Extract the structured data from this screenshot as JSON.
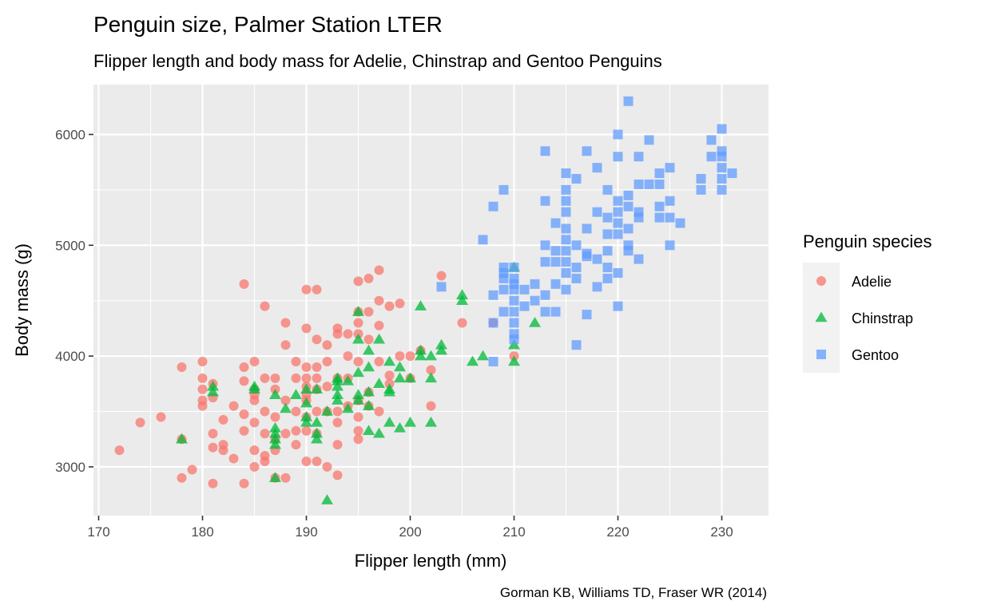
{
  "chart_data": {
    "type": "scatter",
    "title": "Penguin size, Palmer Station LTER",
    "subtitle": "Flipper length and body mass for Adelie, Chinstrap and Gentoo Penguins",
    "xlabel": "Flipper length (mm)",
    "ylabel": "Body mass (g)",
    "caption": "Gorman KB, Williams TD, Fraser WR (2014)",
    "xlim": [
      169.5,
      234.5
    ],
    "ylim": [
      2560,
      6450
    ],
    "x_ticks": [
      "170",
      "180",
      "190",
      "200",
      "210",
      "220",
      "230"
    ],
    "y_ticks": [
      "3000",
      "4000",
      "5000",
      "6000"
    ],
    "grid": true,
    "legend": {
      "title": "Penguin species",
      "position": "right"
    },
    "series": [
      {
        "name": "Adelie",
        "color": "#F8766D",
        "shape": "circle",
        "points": [
          [
            172,
            3150
          ],
          [
            174,
            3400
          ],
          [
            176,
            3450
          ],
          [
            178,
            3900
          ],
          [
            178,
            2900
          ],
          [
            178,
            3250
          ],
          [
            179,
            2975
          ],
          [
            180,
            3950
          ],
          [
            180,
            3800
          ],
          [
            180,
            3700
          ],
          [
            180,
            3600
          ],
          [
            180,
            3550
          ],
          [
            181,
            3750
          ],
          [
            181,
            3625
          ],
          [
            181,
            3300
          ],
          [
            181,
            3175
          ],
          [
            181,
            2850
          ],
          [
            182,
            3425
          ],
          [
            182,
            3200
          ],
          [
            182,
            3150
          ],
          [
            183,
            3550
          ],
          [
            183,
            3075
          ],
          [
            184,
            4650
          ],
          [
            184,
            3900
          ],
          [
            184,
            3775
          ],
          [
            184,
            3475
          ],
          [
            184,
            3325
          ],
          [
            184,
            2850
          ],
          [
            185,
            3950
          ],
          [
            185,
            3700
          ],
          [
            185,
            3650
          ],
          [
            185,
            3600
          ],
          [
            185,
            3400
          ],
          [
            185,
            3150
          ],
          [
            185,
            3000
          ],
          [
            186,
            4450
          ],
          [
            186,
            3800
          ],
          [
            186,
            3500
          ],
          [
            186,
            3300
          ],
          [
            186,
            3100
          ],
          [
            186,
            3050
          ],
          [
            187,
            3800
          ],
          [
            187,
            3700
          ],
          [
            187,
            3450
          ],
          [
            187,
            3250
          ],
          [
            187,
            3150
          ],
          [
            187,
            2900
          ],
          [
            188,
            4300
          ],
          [
            188,
            4100
          ],
          [
            188,
            3600
          ],
          [
            188,
            3300
          ],
          [
            188,
            2900
          ],
          [
            189,
            3950
          ],
          [
            189,
            3800
          ],
          [
            189,
            3500
          ],
          [
            189,
            3325
          ],
          [
            189,
            3200
          ],
          [
            190,
            4600
          ],
          [
            190,
            4250
          ],
          [
            190,
            3900
          ],
          [
            190,
            3800
          ],
          [
            190,
            3725
          ],
          [
            190,
            3650
          ],
          [
            190,
            3600
          ],
          [
            190,
            3450
          ],
          [
            190,
            3325
          ],
          [
            190,
            3050
          ],
          [
            191,
            4600
          ],
          [
            191,
            4150
          ],
          [
            191,
            3900
          ],
          [
            191,
            3800
          ],
          [
            191,
            3700
          ],
          [
            191,
            3500
          ],
          [
            191,
            3300
          ],
          [
            191,
            3050
          ],
          [
            192,
            4100
          ],
          [
            192,
            3950
          ],
          [
            192,
            3725
          ],
          [
            192,
            3500
          ],
          [
            192,
            3000
          ],
          [
            193,
            4250
          ],
          [
            193,
            4200
          ],
          [
            193,
            3800
          ],
          [
            193,
            3500
          ],
          [
            193,
            3400
          ],
          [
            193,
            3200
          ],
          [
            193,
            2925
          ],
          [
            194,
            4200
          ],
          [
            194,
            4000
          ],
          [
            194,
            3800
          ],
          [
            194,
            3550
          ],
          [
            195,
            4675
          ],
          [
            195,
            4400
          ],
          [
            195,
            4300
          ],
          [
            195,
            4200
          ],
          [
            195,
            3950
          ],
          [
            195,
            3600
          ],
          [
            195,
            3450
          ],
          [
            195,
            3325
          ],
          [
            195,
            3250
          ],
          [
            196,
            4700
          ],
          [
            196,
            4400
          ],
          [
            196,
            4150
          ],
          [
            196,
            3675
          ],
          [
            196,
            3550
          ],
          [
            197,
            4775
          ],
          [
            197,
            4500
          ],
          [
            197,
            4275
          ],
          [
            197,
            3950
          ],
          [
            197,
            3500
          ],
          [
            198,
            4450
          ],
          [
            198,
            3825
          ],
          [
            198,
            3750
          ],
          [
            199,
            4475
          ],
          [
            199,
            4000
          ],
          [
            200,
            4000
          ],
          [
            200,
            3800
          ],
          [
            201,
            4050
          ],
          [
            202,
            3875
          ],
          [
            202,
            3550
          ],
          [
            203,
            4725
          ],
          [
            205,
            4300
          ],
          [
            208,
            4300
          ],
          [
            210,
            4000
          ]
        ]
      },
      {
        "name": "Chinstrap",
        "color": "#00BA38",
        "shape": "triangle",
        "points": [
          [
            178,
            3250
          ],
          [
            181,
            3725
          ],
          [
            181,
            3675
          ],
          [
            185,
            3700
          ],
          [
            185,
            3725
          ],
          [
            187,
            3650
          ],
          [
            187,
            3350
          ],
          [
            187,
            3300
          ],
          [
            187,
            3250
          ],
          [
            187,
            3200
          ],
          [
            187,
            2900
          ],
          [
            188,
            3525
          ],
          [
            189,
            3650
          ],
          [
            190,
            3450
          ],
          [
            190,
            3400
          ],
          [
            190,
            3700
          ],
          [
            190,
            3575
          ],
          [
            191,
            3700
          ],
          [
            191,
            3300
          ],
          [
            191,
            3250
          ],
          [
            191,
            3400
          ],
          [
            192,
            2700
          ],
          [
            192,
            3500
          ],
          [
            193,
            3775
          ],
          [
            193,
            3650
          ],
          [
            193,
            3800
          ],
          [
            193,
            3600
          ],
          [
            193,
            3725
          ],
          [
            194,
            3525
          ],
          [
            194,
            3775
          ],
          [
            195,
            4400
          ],
          [
            195,
            4150
          ],
          [
            195,
            3850
          ],
          [
            195,
            3650
          ],
          [
            195,
            3600
          ],
          [
            196,
            4050
          ],
          [
            196,
            3900
          ],
          [
            196,
            3675
          ],
          [
            196,
            3550
          ],
          [
            196,
            3325
          ],
          [
            197,
            4150
          ],
          [
            197,
            3750
          ],
          [
            197,
            3300
          ],
          [
            198,
            3950
          ],
          [
            198,
            3700
          ],
          [
            198,
            3675
          ],
          [
            198,
            3400
          ],
          [
            199,
            3900
          ],
          [
            199,
            3800
          ],
          [
            199,
            3350
          ],
          [
            200,
            3800
          ],
          [
            200,
            3400
          ],
          [
            201,
            4450
          ],
          [
            201,
            4050
          ],
          [
            201,
            4000
          ],
          [
            202,
            4000
          ],
          [
            202,
            3800
          ],
          [
            202,
            3400
          ],
          [
            203,
            4100
          ],
          [
            203,
            4050
          ],
          [
            205,
            4550
          ],
          [
            205,
            4500
          ],
          [
            206,
            3950
          ],
          [
            207,
            4000
          ],
          [
            210,
            4800
          ],
          [
            210,
            4100
          ],
          [
            210,
            3950
          ],
          [
            212,
            4300
          ]
        ]
      },
      {
        "name": "Gentoo",
        "color": "#619CFF",
        "shape": "square",
        "points": [
          [
            203,
            4625
          ],
          [
            207,
            5050
          ],
          [
            208,
            5350
          ],
          [
            208,
            4550
          ],
          [
            208,
            4300
          ],
          [
            208,
            3950
          ],
          [
            209,
            5500
          ],
          [
            209,
            4800
          ],
          [
            209,
            4400
          ],
          [
            209,
            4700
          ],
          [
            209,
            4750
          ],
          [
            209,
            4600
          ],
          [
            210,
            4800
          ],
          [
            210,
            4700
          ],
          [
            210,
            4600
          ],
          [
            210,
            4400
          ],
          [
            210,
            4300
          ],
          [
            210,
            4200
          ],
          [
            210,
            4150
          ],
          [
            210,
            4500
          ],
          [
            210,
            4650
          ],
          [
            211,
            4450
          ],
          [
            211,
            4600
          ],
          [
            212,
            4650
          ],
          [
            212,
            4500
          ],
          [
            213,
            5850
          ],
          [
            213,
            5400
          ],
          [
            213,
            5000
          ],
          [
            213,
            4850
          ],
          [
            213,
            4400
          ],
          [
            213,
            4550
          ],
          [
            214,
            5200
          ],
          [
            214,
            4950
          ],
          [
            214,
            4850
          ],
          [
            214,
            4650
          ],
          [
            214,
            4400
          ],
          [
            215,
            5650
          ],
          [
            215,
            5500
          ],
          [
            215,
            5400
          ],
          [
            215,
            5300
          ],
          [
            215,
            5150
          ],
          [
            215,
            5050
          ],
          [
            215,
            4950
          ],
          [
            215,
            4850
          ],
          [
            215,
            4750
          ],
          [
            215,
            4600
          ],
          [
            216,
            5600
          ],
          [
            216,
            5000
          ],
          [
            216,
            4800
          ],
          [
            216,
            4700
          ],
          [
            216,
            4100
          ],
          [
            217,
            5850
          ],
          [
            217,
            5150
          ],
          [
            217,
            4925
          ],
          [
            217,
            4375
          ],
          [
            217,
            4900
          ],
          [
            218,
            5700
          ],
          [
            218,
            5300
          ],
          [
            218,
            4875
          ],
          [
            218,
            4625
          ],
          [
            219,
            5500
          ],
          [
            219,
            5250
          ],
          [
            219,
            5100
          ],
          [
            219,
            4950
          ],
          [
            219,
            4800
          ],
          [
            219,
            4700
          ],
          [
            220,
            6000
          ],
          [
            220,
            5800
          ],
          [
            220,
            5400
          ],
          [
            220,
            5300
          ],
          [
            220,
            5200
          ],
          [
            220,
            5100
          ],
          [
            220,
            4750
          ],
          [
            220,
            4450
          ],
          [
            221,
            6300
          ],
          [
            221,
            5450
          ],
          [
            221,
            5350
          ],
          [
            221,
            5150
          ],
          [
            221,
            5000
          ],
          [
            221,
            4950
          ],
          [
            222,
            5800
          ],
          [
            222,
            5550
          ],
          [
            222,
            5250
          ],
          [
            222,
            5300
          ],
          [
            222,
            4875
          ],
          [
            223,
            5950
          ],
          [
            223,
            5550
          ],
          [
            224,
            5650
          ],
          [
            224,
            5550
          ],
          [
            224,
            5350
          ],
          [
            224,
            5250
          ],
          [
            225,
            5700
          ],
          [
            225,
            5400
          ],
          [
            225,
            5250
          ],
          [
            225,
            5000
          ],
          [
            226,
            5200
          ],
          [
            228,
            5600
          ],
          [
            228,
            5500
          ],
          [
            229,
            5950
          ],
          [
            229,
            5800
          ],
          [
            230,
            6050
          ],
          [
            230,
            5850
          ],
          [
            230,
            5700
          ],
          [
            230,
            5600
          ],
          [
            230,
            5500
          ],
          [
            230,
            5800
          ],
          [
            231,
            5650
          ]
        ]
      }
    ]
  }
}
